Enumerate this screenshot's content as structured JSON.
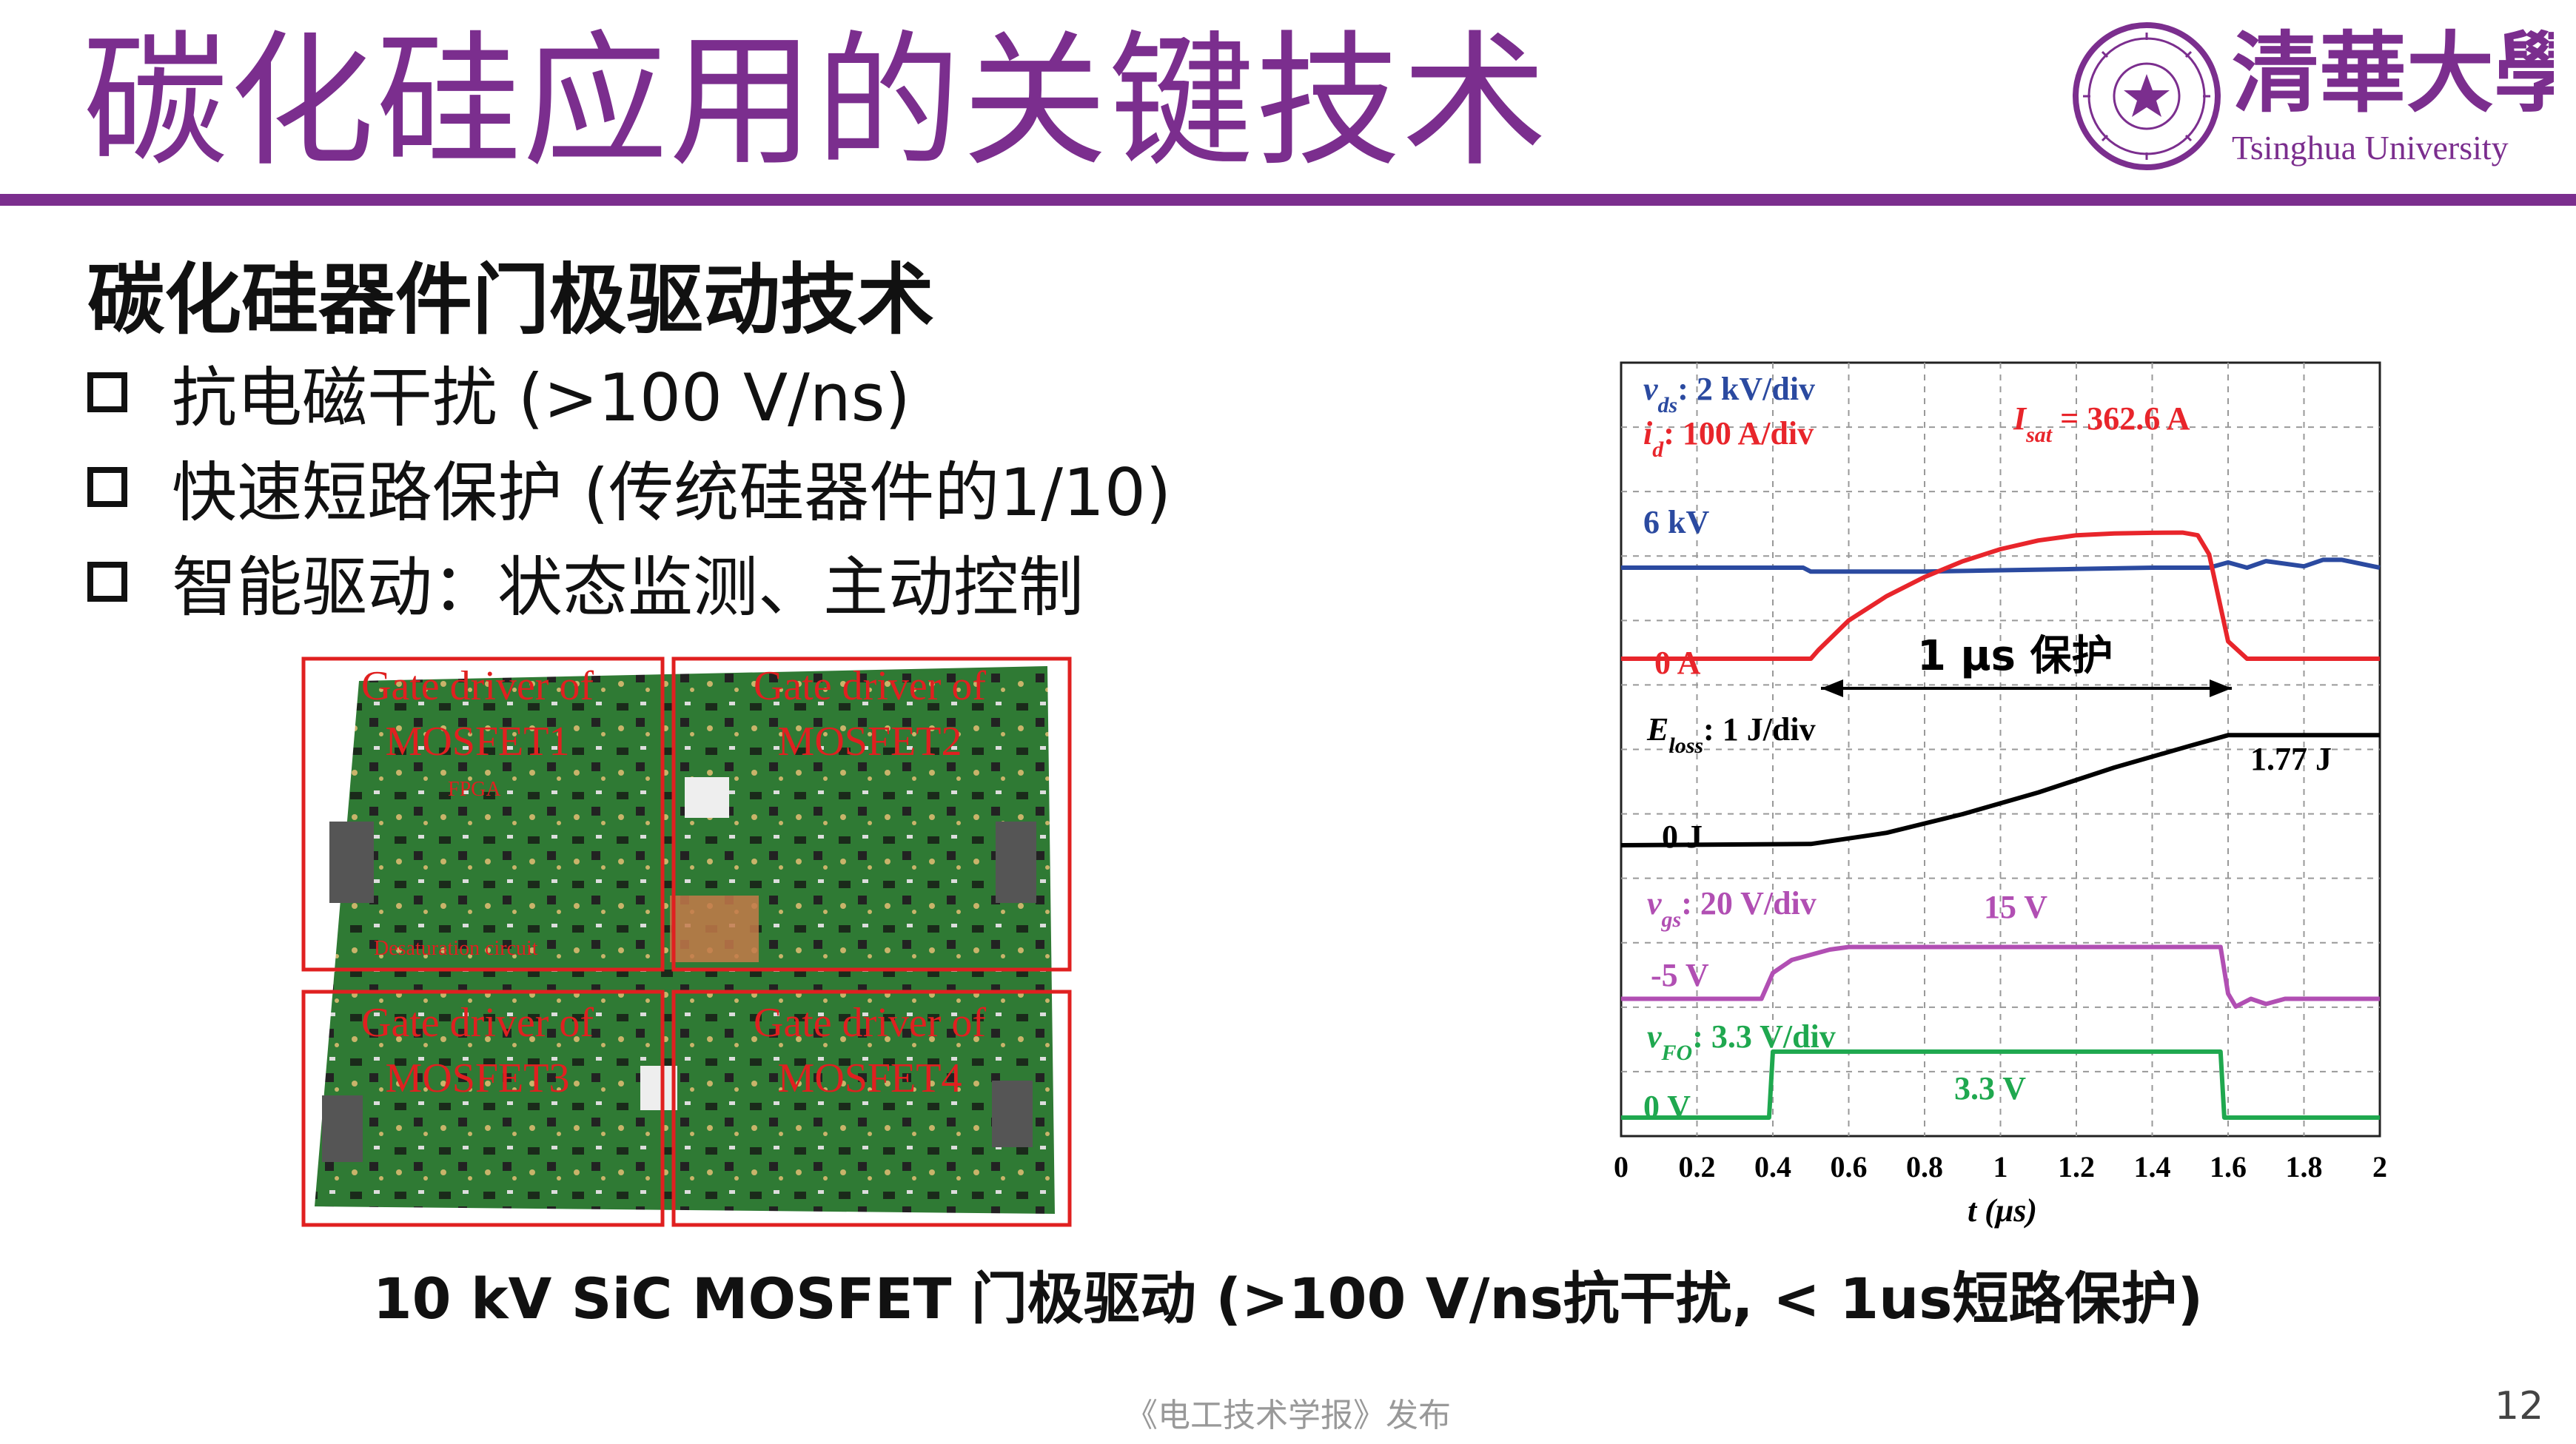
{
  "slide": {
    "title": "碳化硅应用的关键技术",
    "subtitle": "碳化硅器件门极驱动技术",
    "bullets": [
      "抗电磁干扰 (>100 V/ns)",
      "快速短路保护 (传统硅器件的1/10)",
      "智能驱动：状态监测、主动控制"
    ],
    "caption": "10 kV SiC MOSFET 门极驱动 (>100 V/ns抗干扰, < 1us短路保护)",
    "footer": "《电工技术学报》发布",
    "page_number": "12"
  },
  "logo": {
    "chinese": "清華大學",
    "english": "Tsinghua University",
    "seal_text": "清華大學 TSINGHUA UNIVERSITY 1911"
  },
  "photo": {
    "labels": [
      {
        "line1": "Gate driver of",
        "line2": "MOSFET1"
      },
      {
        "line1": "Gate driver of",
        "line2": "MOSFET2"
      },
      {
        "line1": "Gate driver of",
        "line2": "MOSFET3"
      },
      {
        "line1": "Gate driver of",
        "line2": "MOSFET4"
      }
    ],
    "small_labels": [
      "FPGA",
      "Desaturation circuit"
    ],
    "colors": {
      "board": "#2f7a34",
      "label": "#e02020"
    }
  },
  "chart_data": {
    "type": "line",
    "xlabel": "t (μs)",
    "x_ticks": [
      "0",
      "0.2",
      "0.4",
      "0.6",
      "0.8",
      "1",
      "1.2",
      "1.4",
      "1.6",
      "1.8",
      "2"
    ],
    "xlim": [
      0,
      2
    ],
    "grid": true,
    "series": [
      {
        "name": "vds",
        "color": "#2b4aa0",
        "x": [
          0,
          0.48,
          0.5,
          0.52,
          0.6,
          0.8,
          1.0,
          1.2,
          1.4,
          1.55,
          1.6,
          1.65,
          1.7,
          1.8,
          1.85,
          1.9,
          2.0
        ],
        "y": [
          6,
          6,
          5.85,
          5.85,
          5.85,
          5.85,
          5.9,
          5.95,
          6.0,
          6.0,
          6.2,
          6.0,
          6.25,
          6.05,
          6.3,
          6.3,
          6.0
        ]
      },
      {
        "name": "id",
        "color": "#e8252b",
        "x": [
          0,
          0.5,
          0.52,
          0.6,
          0.7,
          0.8,
          0.9,
          1.0,
          1.1,
          1.2,
          1.3,
          1.4,
          1.48,
          1.52,
          1.55,
          1.6,
          1.65,
          2.0
        ],
        "y": [
          0,
          0,
          25,
          110,
          180,
          235,
          280,
          315,
          340,
          355,
          360,
          362,
          362.6,
          355,
          300,
          50,
          0,
          0
        ]
      },
      {
        "name": "Eloss",
        "color": "#000000",
        "x": [
          0,
          0.5,
          0.7,
          0.9,
          1.1,
          1.3,
          1.5,
          1.6,
          2.0
        ],
        "y": [
          0,
          0.02,
          0.2,
          0.5,
          0.85,
          1.25,
          1.6,
          1.77,
          1.77
        ]
      },
      {
        "name": "vgs",
        "color": "#b14fb3",
        "x": [
          0,
          0.37,
          0.4,
          0.45,
          0.5,
          0.55,
          0.6,
          0.8,
          1.0,
          1.2,
          1.4,
          1.58,
          1.6,
          1.62,
          1.66,
          1.7,
          1.75,
          1.8,
          2.0
        ],
        "y": [
          -5,
          -5,
          5,
          10,
          12,
          14,
          15,
          15,
          15,
          15,
          15,
          15,
          -3,
          -8,
          -5,
          -7,
          -5,
          -5,
          -5
        ]
      },
      {
        "name": "vFO",
        "color": "#1fa84f",
        "x": [
          0,
          0.39,
          0.4,
          1.58,
          1.59,
          2.0
        ],
        "y": [
          0,
          0,
          3.3,
          3.3,
          0,
          0
        ]
      }
    ],
    "annotations": {
      "vds_scale_sym": "v",
      "vds_scale_sub": "ds",
      "vds_scale_txt": ": 2 kV/div",
      "id_scale_sym": "i",
      "id_scale_sub": "d",
      "id_scale_txt": ": 100 A/div",
      "isat_sym": "I",
      "isat_sub": "sat",
      "isat_txt": " = 362.6 A",
      "vds_level": "6 kV",
      "id_zero": "0 A",
      "protect": "1 μs 保护",
      "eloss_scale_sym": "E",
      "eloss_scale_sub": "loss",
      "eloss_scale_txt": ": 1 J/div",
      "eloss_final": "1.77 J",
      "eloss_zero": "0 J",
      "vgs_scale_sym": "v",
      "vgs_scale_sub": "gs",
      "vgs_scale_txt": ": 20 V/div",
      "vgs_high": "15 V",
      "vgs_low": "-5 V",
      "vfo_scale_sym": "v",
      "vfo_scale_sub": "FO",
      "vfo_scale_txt": ": 3.3 V/div",
      "vfo_high": "3.3 V",
      "vfo_zero": "0 V"
    }
  }
}
